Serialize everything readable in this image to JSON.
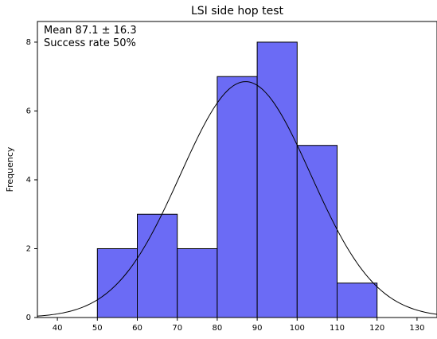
{
  "chart_data": {
    "type": "bar",
    "title": "LSI side hop test",
    "xlabel": "",
    "ylabel": "Frequency",
    "bins": [
      {
        "start": 50,
        "end": 60,
        "count": 2
      },
      {
        "start": 60,
        "end": 70,
        "count": 3
      },
      {
        "start": 70,
        "end": 80,
        "count": 2
      },
      {
        "start": 80,
        "end": 90,
        "count": 7
      },
      {
        "start": 90,
        "end": 100,
        "count": 8
      },
      {
        "start": 100,
        "end": 110,
        "count": 5
      },
      {
        "start": 110,
        "end": 120,
        "count": 1
      }
    ],
    "normal_curve": {
      "mean": 87.1,
      "sd": 16.3
    },
    "annotations": [
      "Mean 87.1 ± 16.3",
      "Success rate 50%"
    ],
    "xlim": [
      35,
      135
    ],
    "ylim": [
      0,
      8.6
    ],
    "xticks": [
      "40",
      "50",
      "60",
      "70",
      "80",
      "90",
      "100",
      "110",
      "120",
      "130"
    ],
    "yticks": [
      "0",
      "2",
      "4",
      "6",
      "8"
    ],
    "grid": false,
    "bar_color": "#6b6bf5",
    "bar_edge_color": "#000000",
    "curve_color": "#000000"
  }
}
